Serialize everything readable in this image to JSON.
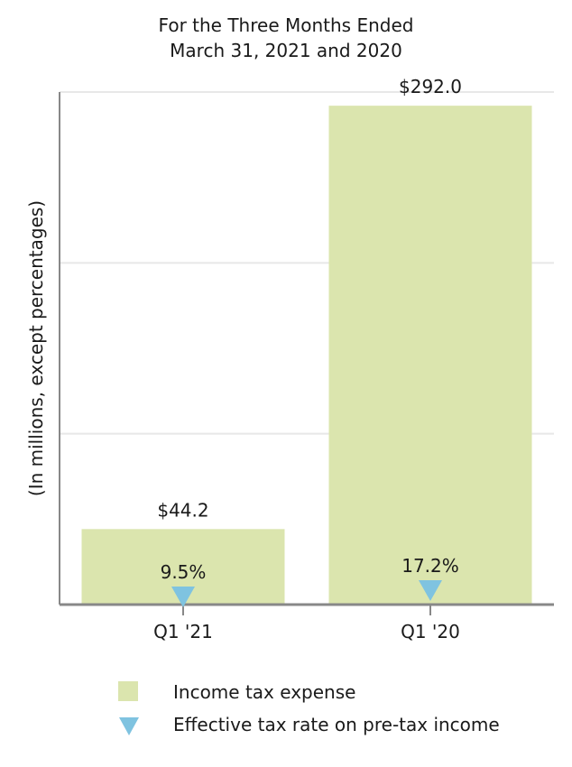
{
  "chart_data": {
    "type": "bar",
    "title": "For the Three Months Ended",
    "subtitle": "March 31, 2021 and 2020",
    "ylabel": "(In millions, except percentages)",
    "categories": [
      "Q1 '21",
      "Q1 '20"
    ],
    "ylim": [
      0,
      300
    ],
    "grid": true,
    "series": [
      {
        "name": "Income tax expense",
        "type": "bar",
        "color": "#dbe5ae",
        "values": [
          44.2,
          292.0
        ],
        "labels": [
          "$44.2",
          "$292.0"
        ]
      },
      {
        "name": "Effective tax rate on pre-tax income",
        "type": "scatter",
        "marker": "triangle-down",
        "color": "#7fc3e0",
        "values": [
          9.5,
          17.2
        ],
        "labels": [
          "9.5%",
          "17.2%"
        ]
      }
    ],
    "legend_position": "bottom"
  }
}
